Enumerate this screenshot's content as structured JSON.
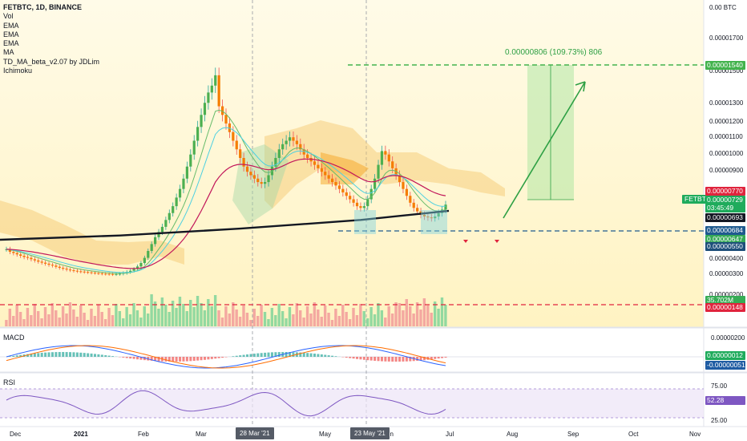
{
  "legend": {
    "title": "FETBTC, 1D, BINANCE",
    "indicators": [
      "Vol",
      "EMA",
      "EMA",
      "EMA",
      "MA",
      "TD_MA_beta_v2.07 by JDLim",
      "Ichimoku"
    ]
  },
  "panes": {
    "macd_label": "MACD",
    "rsi_label": "RSI"
  },
  "price_axis": {
    "labels": [
      "0.00 BTC",
      "0.00001700",
      "0.00001500",
      "0.00001300",
      "0.00001200",
      "0.00001100",
      "0.00001000",
      "0.00000900",
      "0.00000400",
      "0.00000300",
      "0.00000200"
    ],
    "macd_scale": "0.00000200",
    "rsi_scale": [
      "75.00",
      "25.00"
    ]
  },
  "price_tags": [
    {
      "text": "0.00001540",
      "bg": "#43b34d",
      "fg": "#ffffff"
    },
    {
      "text": "0.00000770",
      "bg": "#e0243d",
      "fg": "#ffffff"
    },
    {
      "text": "0.00000729",
      "bg": "#1fab5c",
      "fg": "#ffffff"
    },
    {
      "text": "03:45:49",
      "bg": "#1fab5c",
      "fg": "#ffffff"
    },
    {
      "text": "0.00000693",
      "bg": "#131722",
      "fg": "#ffffff"
    },
    {
      "text": "0.00000684",
      "bg": "#1f5a8f",
      "fg": "#ffffff"
    },
    {
      "text": "0.00000647",
      "bg": "#35a956",
      "fg": "#ffffff"
    },
    {
      "text": "0.00000550",
      "bg": "#1e4f7a",
      "fg": "#ffffff"
    },
    {
      "text": "35.702M",
      "bg": "#36ac55",
      "fg": "#ffffff"
    },
    {
      "text": "0.00000148",
      "bg": "#e0243d",
      "fg": "#ffffff"
    },
    {
      "text": "0.00000012",
      "bg": "#1fab5c",
      "fg": "#ffffff"
    },
    {
      "text": "-0.00000051",
      "bg": "#1f5ca3",
      "fg": "#ffffff"
    },
    {
      "text": "52.28",
      "bg": "#7e57c2",
      "fg": "#ffffff"
    }
  ],
  "symbol_badge": {
    "text": "FETBTC",
    "bg": "#1fab5c"
  },
  "projection": {
    "label": "0.00000806 (109.73%) 806",
    "color": "#2ea044"
  },
  "time_axis": {
    "labels": [
      "Dec",
      "2021",
      "Feb",
      "Mar",
      "May",
      "Jun",
      "Jul",
      "Aug",
      "Sep",
      "Oct",
      "Nov"
    ],
    "highlighted": [
      "28 Mar '21",
      "23 May '21"
    ]
  },
  "chart_data": {
    "type": "candlestick",
    "symbol": "FETBTC",
    "interval": "1D",
    "exchange": "BINANCE",
    "closes": [
      4.7e-06,
      4.55e-06,
      4.48e-06,
      4.4e-06,
      4.32e-06,
      4.25e-06,
      4.2e-06,
      4.12e-06,
      4.05e-06,
      3.98e-06,
      3.92e-06,
      3.86e-06,
      3.8e-06,
      3.75e-06,
      3.68e-06,
      3.62e-06,
      3.57e-06,
      3.52e-06,
      3.48e-06,
      3.45e-06,
      3.42e-06,
      3.4e-06,
      3.38e-06,
      3.36e-06,
      3.34e-06,
      3.32e-06,
      3.3e-06,
      3.28e-06,
      3.27e-06,
      3.26e-06,
      3.25e-06,
      3.26e-06,
      3.28e-06,
      3.32e-06,
      3.38e-06,
      3.45e-06,
      3.55e-06,
      3.7e-06,
      3.9e-06,
      4.2e-06,
      4.6e-06,
      5e-06,
      5.4e-06,
      5.7e-06,
      6e-06,
      6.4e-06,
      6.8e-06,
      7.2e-06,
      7.7e-06,
      8.2e-06,
      8.8e-06,
      9.5e-06,
      1.02e-05,
      1.1e-05,
      1.18e-05,
      1.25e-05,
      1.32e-05,
      1.38e-05,
      1.42e-05,
      1.48e-05,
      1.3e-05,
      1.25e-05,
      1.2e-05,
      1.15e-05,
      1.1e-05,
      1.05e-05,
      1e-05,
      9.5e-06,
      9.2e-06,
      9e-06,
      8.8e-06,
      8.6e-06,
      8.5e-06,
      8.6e-06,
      9e-06,
      9.5e-06,
      1e-05,
      1.05e-05,
      1.08e-05,
      1.1e-05,
      1.12e-05,
      1.1e-05,
      1.08e-05,
      1.05e-05,
      1.02e-05,
      1e-05,
      9.8e-06,
      9.6e-06,
      9.4e-06,
      9.2e-06,
      9e-06,
      8.8e-06,
      8.6e-06,
      8.4e-06,
      8.2e-06,
      8e-06,
      7.8e-06,
      7.6e-06,
      7.4e-06,
      7.2e-06,
      7.1e-06,
      7.2e-06,
      7.6e-06,
      8.2e-06,
      8.8e-06,
      9.6e-06,
      1.04e-05,
      1.02e-05,
      9.8e-06,
      9.4e-06,
      9e-06,
      8.6e-06,
      8.2e-06,
      7.8e-06,
      7.4e-06,
      7.1e-06,
      6.9e-06,
      6.7e-06,
      6.6e-06,
      6.55e-06,
      6.5e-06,
      6.6e-06,
      6.8e-06,
      7e-06,
      7.29e-06
    ],
    "ma200_approx": [
      5.25e-06,
      5.5e-06,
      5.9e-06,
      6.4e-06,
      6.93e-06
    ],
    "levels": {
      "target": 1.54e-05,
      "support": 6.84e-06,
      "current": 7.29e-06,
      "projection_gain_pct": 109.73
    },
    "volume_last": "35.702M",
    "macd": {
      "macd": 1.2e-07,
      "signal": -5.1e-07
    },
    "rsi": {
      "value": 52.28,
      "upper": 75,
      "lower": 25
    }
  }
}
